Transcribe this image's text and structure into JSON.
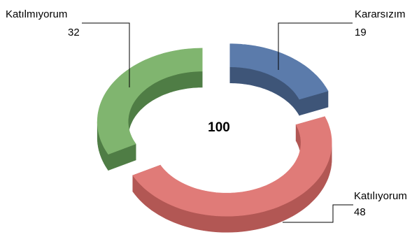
{
  "chart_data": {
    "type": "pie",
    "variant": "3d-exploded-doughnut",
    "center_label": "100",
    "slices": [
      {
        "category": "Kararsızım",
        "value": 19,
        "category_text": "Kararsızım",
        "value_text": "19",
        "color": "#5b7bab",
        "side_color": "#3e5578"
      },
      {
        "category": "Katılıyorum",
        "value": 48,
        "category_text": "Katılıyorum",
        "value_text": "48",
        "color": "#e07b78",
        "side_color": "#b25754"
      },
      {
        "category": "Katılmıyorum",
        "value": 32,
        "category_text": "Katılmıyorum",
        "value_text": "32",
        "color": "#80b56f",
        "side_color": "#4f7d45"
      }
    ],
    "legend": "none",
    "data_labels": "outside-with-leader-lines"
  }
}
